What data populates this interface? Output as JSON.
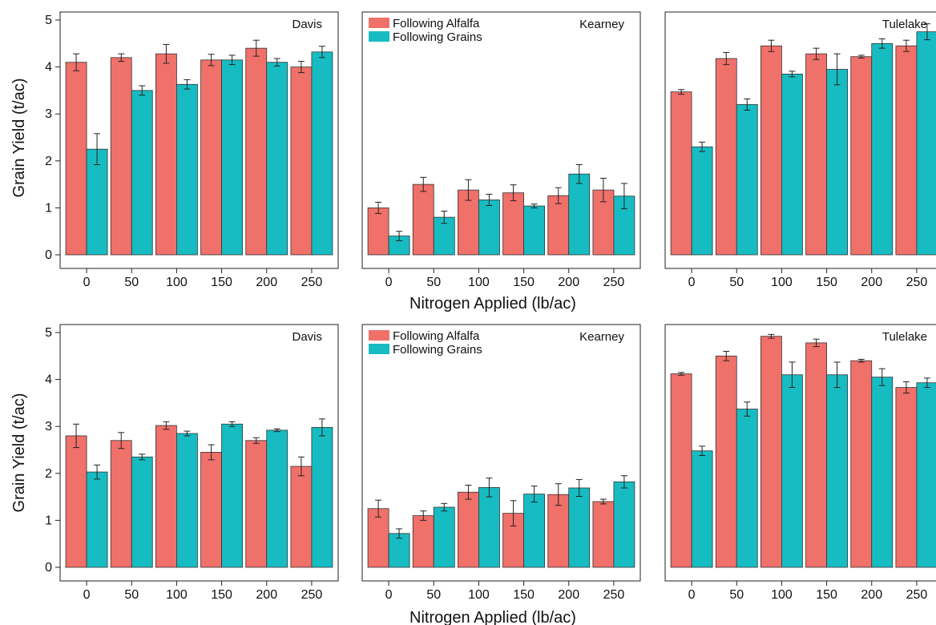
{
  "figure": {
    "ylabel": "Grain Yield (t/ac)",
    "xlabel": "Nitrogen Applied (lb/ac)",
    "colors": {
      "alfalfa": "#f0706a",
      "grains": "#17bcc2"
    }
  },
  "chart_data": [
    {
      "type": "bar",
      "location": "Davis",
      "categories": [
        "0",
        "50",
        "100",
        "150",
        "200",
        "250"
      ],
      "ylim": [
        0,
        5
      ],
      "yticks": [
        0,
        1,
        2,
        3,
        4,
        5
      ],
      "legend": false,
      "series": [
        {
          "key": "alfalfa",
          "name": "Following Alfalfa",
          "values": [
            4.1,
            4.2,
            4.28,
            4.15,
            4.4,
            4.0
          ],
          "errors": [
            0.18,
            0.08,
            0.2,
            0.12,
            0.17,
            0.12
          ]
        },
        {
          "key": "grains",
          "name": "Following Grains",
          "values": [
            2.25,
            3.5,
            3.63,
            4.15,
            4.1,
            4.32
          ],
          "errors": [
            0.33,
            0.1,
            0.1,
            0.1,
            0.08,
            0.12
          ]
        }
      ]
    },
    {
      "type": "bar",
      "location": "Kearney",
      "categories": [
        "0",
        "50",
        "100",
        "150",
        "200",
        "250"
      ],
      "ylim": [
        0,
        5
      ],
      "yticks": [],
      "legend": true,
      "series": [
        {
          "key": "alfalfa",
          "name": "Following Alfalfa",
          "values": [
            1.0,
            1.5,
            1.38,
            1.32,
            1.26,
            1.38
          ],
          "errors": [
            0.12,
            0.15,
            0.22,
            0.17,
            0.17,
            0.25
          ]
        },
        {
          "key": "grains",
          "name": "Following Grains",
          "values": [
            0.4,
            0.8,
            1.17,
            1.04,
            1.72,
            1.25
          ],
          "errors": [
            0.1,
            0.13,
            0.12,
            0.04,
            0.2,
            0.27
          ]
        }
      ]
    },
    {
      "type": "bar",
      "location": "Tulelake",
      "categories": [
        "0",
        "50",
        "100",
        "150",
        "200",
        "250"
      ],
      "ylim": [
        0,
        5
      ],
      "yticks": [],
      "legend": false,
      "series": [
        {
          "key": "alfalfa",
          "name": "Following Alfalfa",
          "values": [
            3.47,
            4.18,
            4.45,
            4.28,
            4.22,
            4.45
          ],
          "errors": [
            0.05,
            0.13,
            0.12,
            0.12,
            0.03,
            0.12
          ]
        },
        {
          "key": "grains",
          "name": "Following Grains",
          "values": [
            2.3,
            3.2,
            3.85,
            3.95,
            4.5,
            4.75
          ],
          "errors": [
            0.1,
            0.12,
            0.06,
            0.33,
            0.1,
            0.17
          ]
        }
      ]
    },
    {
      "type": "bar",
      "location": "Davis",
      "categories": [
        "0",
        "50",
        "100",
        "150",
        "200",
        "250"
      ],
      "ylim": [
        0,
        5
      ],
      "yticks": [
        0,
        1,
        2,
        3,
        4,
        5
      ],
      "legend": false,
      "series": [
        {
          "key": "alfalfa",
          "name": "Following Alfalfa",
          "values": [
            2.8,
            2.7,
            3.02,
            2.45,
            2.7,
            2.15
          ],
          "errors": [
            0.25,
            0.17,
            0.08,
            0.16,
            0.06,
            0.2
          ]
        },
        {
          "key": "grains",
          "name": "Following Grains",
          "values": [
            2.03,
            2.35,
            2.85,
            3.05,
            2.92,
            2.98
          ],
          "errors": [
            0.15,
            0.06,
            0.05,
            0.05,
            0.03,
            0.18
          ]
        }
      ]
    },
    {
      "type": "bar",
      "location": "Kearney",
      "categories": [
        "0",
        "50",
        "100",
        "150",
        "200",
        "250"
      ],
      "ylim": [
        0,
        5
      ],
      "yticks": [],
      "legend": true,
      "series": [
        {
          "key": "alfalfa",
          "name": "Following Alfalfa",
          "values": [
            1.25,
            1.1,
            1.6,
            1.15,
            1.55,
            1.4
          ],
          "errors": [
            0.18,
            0.1,
            0.15,
            0.27,
            0.23,
            0.05
          ]
        },
        {
          "key": "grains",
          "name": "Following Grains",
          "values": [
            0.72,
            1.28,
            1.7,
            1.56,
            1.69,
            1.82
          ],
          "errors": [
            0.1,
            0.08,
            0.2,
            0.17,
            0.18,
            0.13
          ]
        }
      ]
    },
    {
      "type": "bar",
      "location": "Tulelake",
      "categories": [
        "0",
        "50",
        "100",
        "150",
        "200",
        "250"
      ],
      "ylim": [
        0,
        5
      ],
      "yticks": [],
      "legend": false,
      "series": [
        {
          "key": "alfalfa",
          "name": "Following Alfalfa",
          "values": [
            4.12,
            4.5,
            4.92,
            4.78,
            4.4,
            3.83
          ],
          "errors": [
            0.03,
            0.1,
            0.04,
            0.08,
            0.03,
            0.12
          ]
        },
        {
          "key": "grains",
          "name": "Following Grains",
          "values": [
            2.48,
            3.37,
            4.1,
            4.1,
            4.05,
            3.93
          ],
          "errors": [
            0.1,
            0.15,
            0.27,
            0.27,
            0.18,
            0.1
          ]
        }
      ]
    }
  ]
}
